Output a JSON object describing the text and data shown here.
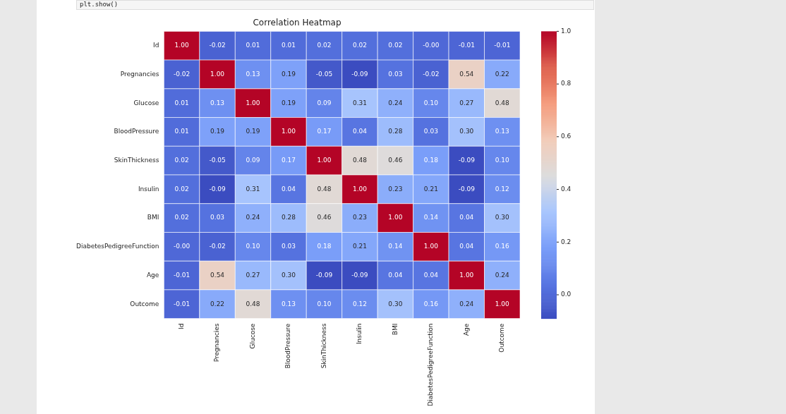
{
  "chart_data": {
    "type": "heatmap",
    "title": "Correlation Heatmap",
    "annotations": [
      "plt.show()"
    ],
    "categories": [
      "Id",
      "Pregnancies",
      "Glucose",
      "BloodPressure",
      "SkinThickness",
      "Insulin",
      "BMI",
      "DiabetesPedigreeFunction",
      "Age",
      "Outcome"
    ],
    "y_categories": [
      "Id",
      "Pregnancies",
      "Glucose",
      "BloodPressure",
      "SkinThickness",
      "Insulin",
      "BMI",
      "DiabetesPedigreeFunction",
      "Age",
      "Outcome"
    ],
    "cells": [
      [
        1.0,
        -0.02,
        0.01,
        0.01,
        0.02,
        0.02,
        0.02,
        0.0,
        -0.01,
        -0.01
      ],
      [
        -0.02,
        1.0,
        0.13,
        0.19,
        -0.05,
        -0.09,
        0.03,
        -0.02,
        0.54,
        0.22
      ],
      [
        0.01,
        0.13,
        1.0,
        0.19,
        0.09,
        0.31,
        0.24,
        0.1,
        0.27,
        0.48
      ],
      [
        0.01,
        0.19,
        0.19,
        1.0,
        0.17,
        0.04,
        0.28,
        0.03,
        0.3,
        0.13
      ],
      [
        0.02,
        -0.05,
        0.09,
        0.17,
        1.0,
        0.48,
        0.46,
        0.18,
        -0.09,
        0.1
      ],
      [
        0.02,
        -0.09,
        0.31,
        0.04,
        0.48,
        1.0,
        0.23,
        0.21,
        -0.09,
        0.12
      ],
      [
        0.02,
        0.03,
        0.24,
        0.28,
        0.46,
        0.23,
        1.0,
        0.14,
        0.04,
        0.3
      ],
      [
        0.0,
        -0.02,
        0.1,
        0.03,
        0.18,
        0.21,
        0.14,
        1.0,
        0.04,
        0.16
      ],
      [
        -0.01,
        0.54,
        0.27,
        0.3,
        -0.09,
        -0.09,
        0.04,
        0.04,
        1.0,
        0.24
      ],
      [
        -0.01,
        0.22,
        0.48,
        0.13,
        0.1,
        0.12,
        0.3,
        0.16,
        0.24,
        1.0
      ]
    ],
    "cell_labels": [
      [
        "1.00",
        "-0.02",
        "0.01",
        "0.01",
        "0.02",
        "0.02",
        "0.02",
        "-0.00",
        "-0.01",
        "-0.01"
      ],
      [
        "-0.02",
        "1.00",
        "0.13",
        "0.19",
        "-0.05",
        "-0.09",
        "0.03",
        "-0.02",
        "0.54",
        "0.22"
      ],
      [
        "0.01",
        "0.13",
        "1.00",
        "0.19",
        "0.09",
        "0.31",
        "0.24",
        "0.10",
        "0.27",
        "0.48"
      ],
      [
        "0.01",
        "0.19",
        "0.19",
        "1.00",
        "0.17",
        "0.04",
        "0.28",
        "0.03",
        "0.30",
        "0.13"
      ],
      [
        "0.02",
        "-0.05",
        "0.09",
        "0.17",
        "1.00",
        "0.48",
        "0.46",
        "0.18",
        "-0.09",
        "0.10"
      ],
      [
        "0.02",
        "-0.09",
        "0.31",
        "0.04",
        "0.48",
        "1.00",
        "0.23",
        "0.21",
        "-0.09",
        "0.12"
      ],
      [
        "0.02",
        "0.03",
        "0.24",
        "0.28",
        "0.46",
        "0.23",
        "1.00",
        "0.14",
        "0.04",
        "0.30"
      ],
      [
        "-0.00",
        "-0.02",
        "0.10",
        "0.03",
        "0.18",
        "0.21",
        "0.14",
        "1.00",
        "0.04",
        "0.16"
      ],
      [
        "-0.01",
        "0.54",
        "0.27",
        "0.30",
        "-0.09",
        "-0.09",
        "0.04",
        "0.04",
        "1.00",
        "0.24"
      ],
      [
        "-0.01",
        "0.22",
        "0.48",
        "0.13",
        "0.10",
        "0.12",
        "0.30",
        "0.16",
        "0.24",
        "1.00"
      ]
    ],
    "clim": [
      -0.09,
      1.0
    ],
    "cticks": [
      {
        "value": 0,
        "label": "0.0"
      },
      {
        "value": 0.2,
        "label": "0.2"
      },
      {
        "value": 0.4,
        "label": "0.4"
      },
      {
        "value": 0.6,
        "label": "0.6"
      },
      {
        "value": 0.8,
        "label": "0.8"
      },
      {
        "value": 1.0,
        "label": "1.0"
      }
    ]
  }
}
